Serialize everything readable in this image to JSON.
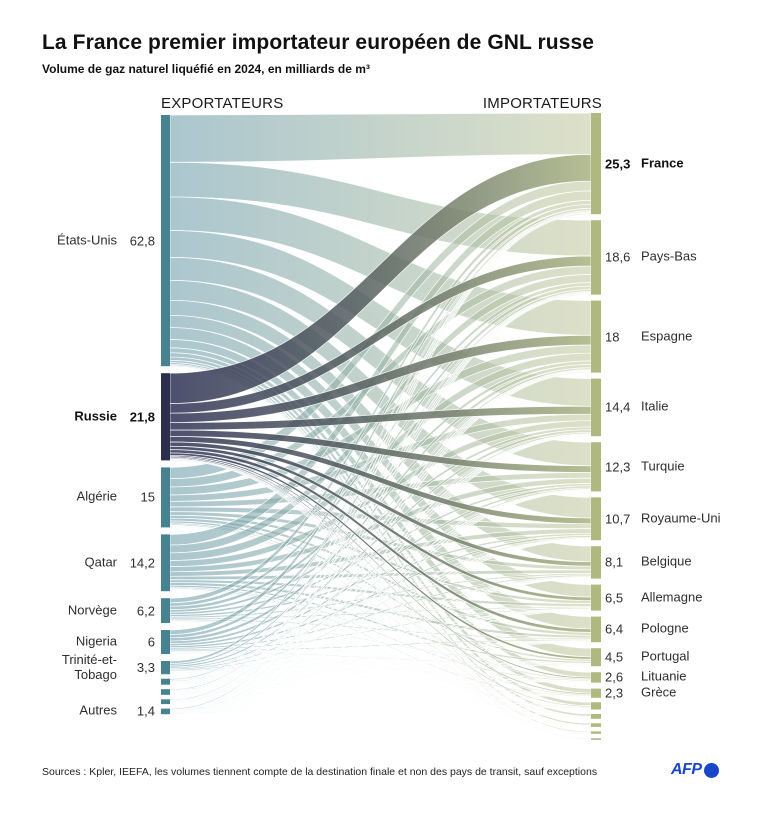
{
  "title": "La France premier importateur européen de GNL russe",
  "subtitle": "Volume de gaz naturel liquéfié en 2024, en milliards de m³",
  "columns": {
    "left": "EXPORTATEURS",
    "right": "IMPORTATEURS"
  },
  "source": "Sources : Kpler, IEEFA, les volumes tiennent compte de la destination finale et non des pays de transit, sauf exceptions",
  "logo": {
    "text": "AFP"
  },
  "colors": {
    "teal_node": "#46828f",
    "teal_flow_start": "#6d9dab",
    "dark_node": "#2b2f4e",
    "dark_flow_start": "#2e3254",
    "dark_flow_mid": "#555f60",
    "olive_node": "#aeb87f",
    "olive_flow_end": "#c5caa0",
    "dark_flow_end": "#a9b381",
    "afp_blue": "#1946c8"
  },
  "chart_data": {
    "type": "sankey",
    "title": "La France premier importateur européen de GNL russe",
    "subtitle": "Volume de gaz naturel liquéfié en 2024, en milliards de m³",
    "unit": "milliards de m³",
    "left_header": "EXPORTATEURS",
    "right_header": "IMPORTATEURS",
    "exporters": [
      {
        "label": "États-Unis",
        "display": "62,8",
        "value": 62.8,
        "bold": false,
        "color": "teal"
      },
      {
        "label": "Russie",
        "display": "21,8",
        "value": 21.8,
        "bold": true,
        "color": "dark"
      },
      {
        "label": "Algérie",
        "display": "15",
        "value": 15,
        "bold": false,
        "color": "teal"
      },
      {
        "label": "Qatar",
        "display": "14,2",
        "value": 14.2,
        "bold": false,
        "color": "teal"
      },
      {
        "label": "Norvège",
        "display": "6,2",
        "value": 6.2,
        "bold": false,
        "color": "teal"
      },
      {
        "label": "Nigeria",
        "display": "6",
        "value": 6,
        "bold": false,
        "color": "teal"
      },
      {
        "label": "Trinité-et-Tobago",
        "display": "3,3",
        "value": 3.3,
        "bold": false,
        "color": "teal"
      },
      {
        "label": "",
        "display": "",
        "value": 1.5,
        "bold": false,
        "color": "teal"
      },
      {
        "label": "",
        "display": "",
        "value": 1.4,
        "bold": false,
        "color": "teal"
      },
      {
        "label": "",
        "display": "",
        "value": 1.2,
        "bold": false,
        "color": "teal"
      },
      {
        "label": "Autres",
        "display": "1,4",
        "value": 1.4,
        "bold": false,
        "color": "teal"
      }
    ],
    "importers": [
      {
        "label": "France",
        "display": "25,3",
        "value": 25.3,
        "bold": true
      },
      {
        "label": "Pays-Bas",
        "display": "18,6",
        "value": 18.6,
        "bold": false
      },
      {
        "label": "Espagne",
        "display": "18",
        "value": 18,
        "bold": false
      },
      {
        "label": "Italie",
        "display": "14,4",
        "value": 14.4,
        "bold": false
      },
      {
        "label": "Turquie",
        "display": "12,3",
        "value": 12.3,
        "bold": false
      },
      {
        "label": "Royaume-Uni",
        "display": "10,7",
        "value": 10.7,
        "bold": false
      },
      {
        "label": "Belgique",
        "display": "8,1",
        "value": 8.1,
        "bold": false
      },
      {
        "label": "Allemagne",
        "display": "6,5",
        "value": 6.5,
        "bold": false
      },
      {
        "label": "Pologne",
        "display": "6,4",
        "value": 6.4,
        "bold": false
      },
      {
        "label": "Portugal",
        "display": "4,5",
        "value": 4.5,
        "bold": false
      },
      {
        "label": "Lituanie",
        "display": "2,6",
        "value": 2.6,
        "bold": false
      },
      {
        "label": "Grèce",
        "display": "2,3",
        "value": 2.3,
        "bold": false
      },
      {
        "label": "",
        "display": "",
        "value": 1.8,
        "bold": false
      },
      {
        "label": "",
        "display": "",
        "value": 1.2,
        "bold": false
      },
      {
        "label": "",
        "display": "",
        "value": 0.9,
        "bold": false
      },
      {
        "label": "",
        "display": "",
        "value": 0.6,
        "bold": false
      },
      {
        "label": "",
        "display": "",
        "value": 0.4,
        "bold": false
      }
    ]
  }
}
